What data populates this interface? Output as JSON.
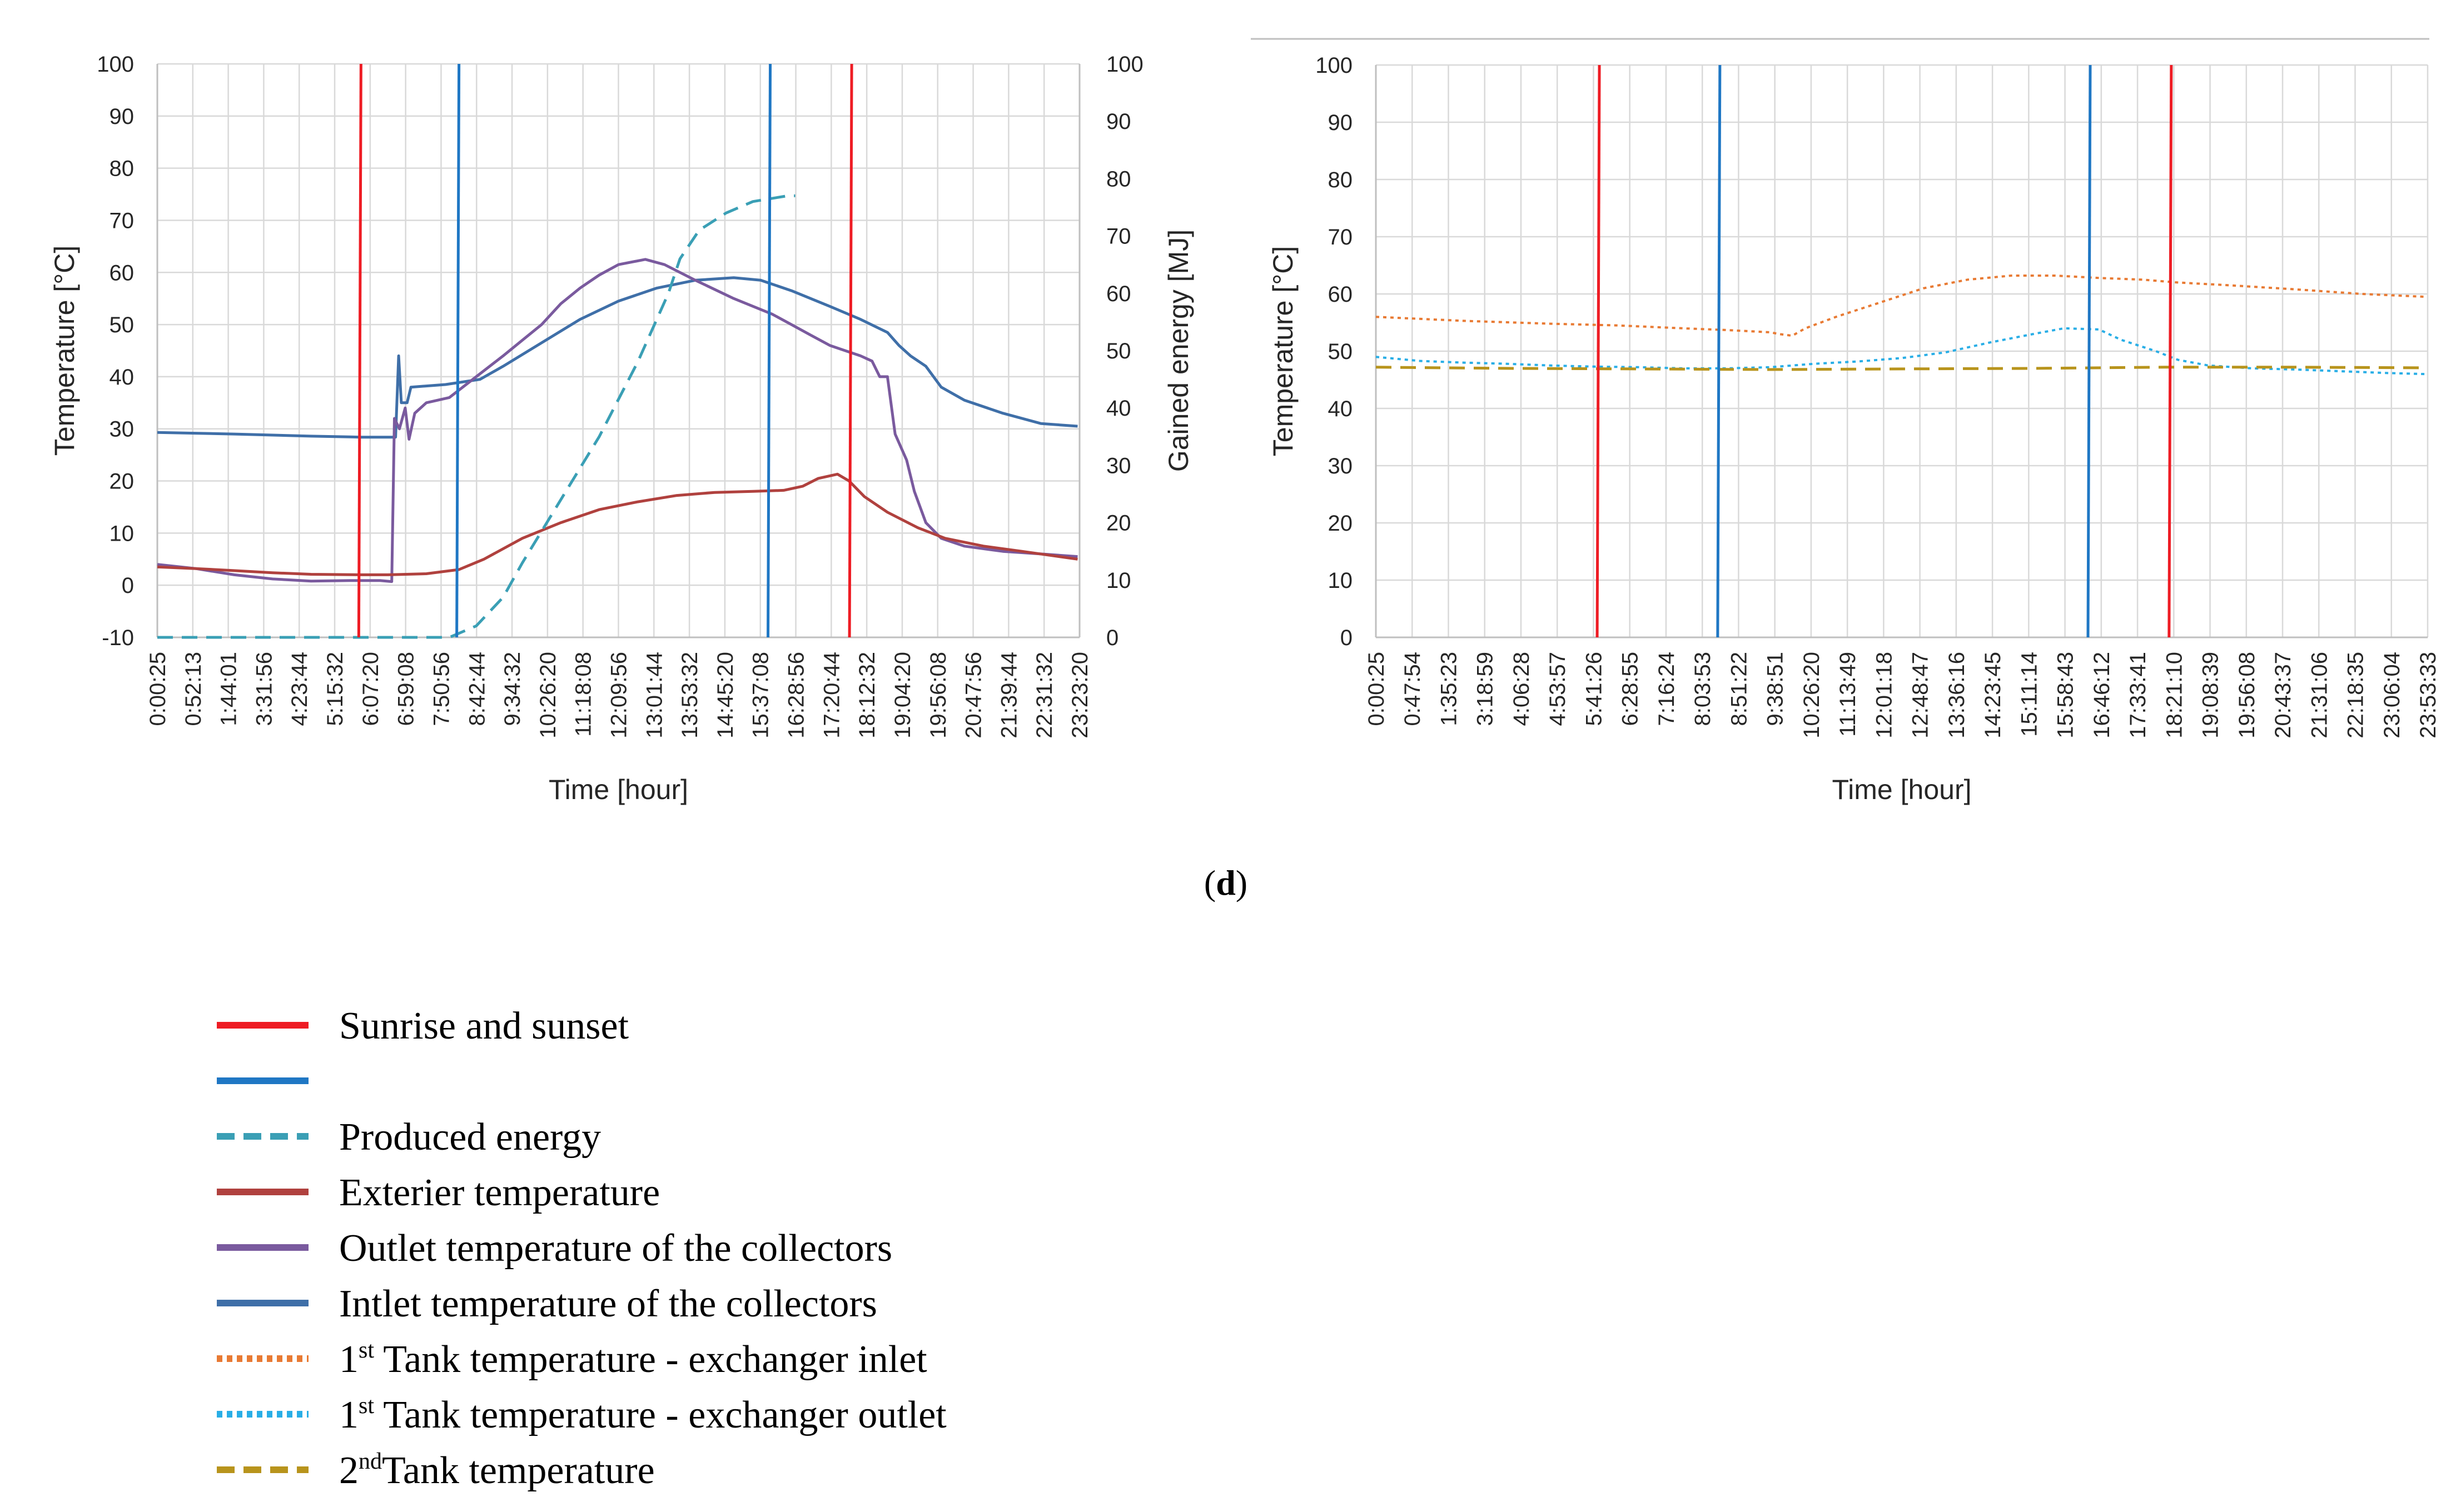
{
  "panel_label": {
    "open": "(",
    "letter": "d",
    "close": ")"
  },
  "colors": {
    "sun": "#ee1c24",
    "light": "#1f77c4",
    "produced": "#3a9fb5",
    "exterior": "#b0413e",
    "outlet": "#7a5a9e",
    "inlet": "#3f6fa8",
    "tank1_inlet": "#e87a33",
    "tank1_outlet": "#29aee6",
    "tank2": "#b8941c",
    "grid": "#d9d9d9",
    "axis": "#bfbfbf",
    "top_rule": "#bfbfbf"
  },
  "chart_data": [
    {
      "type": "line",
      "id": "left",
      "xlabel": "Time [hour]",
      "ylabel": "Temperature [°C]",
      "y2label": "Gained energy [MJ]",
      "ylim": [
        -10,
        100
      ],
      "y2lim": [
        0,
        100
      ],
      "y_ticks": [
        "-10",
        "0",
        "10",
        "20",
        "30",
        "40",
        "50",
        "60",
        "70",
        "80",
        "90",
        "100"
      ],
      "y2_ticks": [
        "0",
        "10",
        "20",
        "30",
        "40",
        "50",
        "60",
        "70",
        "80",
        "90",
        "100"
      ],
      "x_tick_labels": [
        "0:00:25",
        "0:52:13",
        "1:44:01",
        "3:31:56",
        "4:23:44",
        "5:15:32",
        "6:07:20",
        "6:59:08",
        "7:50:56",
        "8:42:44",
        "9:34:32",
        "10:26:20",
        "11:18:08",
        "12:09:56",
        "13:01:44",
        "13:53:32",
        "14:45:20",
        "15:37:08",
        "16:28:56",
        "17:20:44",
        "18:12:32",
        "19:04:20",
        "19:56:08",
        "20:47:56",
        "21:39:44",
        "22:31:32",
        "23:23:20"
      ],
      "vertical_markers": [
        {
          "name": "sunrise",
          "series": "sun",
          "x": 5.3
        },
        {
          "name": "light-start",
          "series": "light",
          "x": 7.85
        },
        {
          "name": "light-end",
          "series": "light",
          "x": 15.95
        },
        {
          "name": "sunset",
          "series": "sun",
          "x": 18.07
        }
      ],
      "series": [
        {
          "name": "Intlet temperature of the collectors",
          "key": "inlet",
          "axis": "left",
          "dash": "solid",
          "points": [
            [
              0,
              29.3
            ],
            [
              2,
              29
            ],
            [
              4,
              28.6
            ],
            [
              5.3,
              28.4
            ],
            [
              6.0,
              28.4
            ],
            [
              6.2,
              28.4
            ],
            [
              6.28,
              44
            ],
            [
              6.35,
              35
            ],
            [
              6.5,
              35
            ],
            [
              6.6,
              38
            ],
            [
              7.5,
              38.5
            ],
            [
              8.4,
              39.5
            ],
            [
              9,
              42
            ],
            [
              10,
              46.5
            ],
            [
              11,
              51
            ],
            [
              12,
              54.5
            ],
            [
              13,
              57
            ],
            [
              14,
              58.5
            ],
            [
              15,
              59
            ],
            [
              15.7,
              58.5
            ],
            [
              16.5,
              56.5
            ],
            [
              17.5,
              53.5
            ],
            [
              18.3,
              51
            ],
            [
              19,
              48.5
            ],
            [
              19.3,
              46
            ],
            [
              19.6,
              44
            ],
            [
              20,
              42
            ],
            [
              20.4,
              38
            ],
            [
              21,
              35.5
            ],
            [
              22,
              33
            ],
            [
              23,
              31
            ],
            [
              23.95,
              30.5
            ]
          ]
        },
        {
          "name": "Outlet temperature of the collectors",
          "key": "outlet",
          "axis": "left",
          "dash": "solid",
          "points": [
            [
              0,
              4
            ],
            [
              1,
              3.2
            ],
            [
              2,
              2
            ],
            [
              3,
              1.2
            ],
            [
              4,
              0.8
            ],
            [
              5,
              0.9
            ],
            [
              5.8,
              0.9
            ],
            [
              6.1,
              0.7
            ],
            [
              6.17,
              32
            ],
            [
              6.3,
              30
            ],
            [
              6.45,
              34
            ],
            [
              6.55,
              28
            ],
            [
              6.7,
              33
            ],
            [
              7,
              35
            ],
            [
              7.6,
              36
            ],
            [
              8.3,
              40
            ],
            [
              9,
              44
            ],
            [
              9.5,
              47
            ],
            [
              10,
              50
            ],
            [
              10.5,
              54
            ],
            [
              11,
              57
            ],
            [
              11.5,
              59.5
            ],
            [
              12,
              61.5
            ],
            [
              12.7,
              62.5
            ],
            [
              13.2,
              61.5
            ],
            [
              14,
              58.5
            ],
            [
              15,
              55
            ],
            [
              16,
              52
            ],
            [
              16.5,
              50
            ],
            [
              17,
              48
            ],
            [
              17.5,
              46
            ],
            [
              18.3,
              44
            ],
            [
              18.6,
              43
            ],
            [
              18.8,
              40
            ],
            [
              19.0,
              40
            ],
            [
              19.2,
              29
            ],
            [
              19.5,
              24
            ],
            [
              19.7,
              18
            ],
            [
              20,
              12
            ],
            [
              20.4,
              9
            ],
            [
              21,
              7.5
            ],
            [
              22,
              6.5
            ],
            [
              23,
              6
            ],
            [
              23.95,
              5.5
            ]
          ]
        },
        {
          "name": "Exterier temperature",
          "key": "exterior",
          "axis": "left",
          "dash": "solid",
          "points": [
            [
              0,
              3.5
            ],
            [
              1,
              3.2
            ],
            [
              2,
              2.8
            ],
            [
              3,
              2.4
            ],
            [
              4,
              2.1
            ],
            [
              5.3,
              2.0
            ],
            [
              6,
              2.0
            ],
            [
              7,
              2.2
            ],
            [
              7.85,
              3
            ],
            [
              8.5,
              5
            ],
            [
              9.5,
              9
            ],
            [
              10.5,
              12
            ],
            [
              11.5,
              14.5
            ],
            [
              12.5,
              16
            ],
            [
              13.5,
              17.2
            ],
            [
              14.5,
              17.8
            ],
            [
              15.5,
              18
            ],
            [
              16.3,
              18.2
            ],
            [
              16.8,
              19
            ],
            [
              17.2,
              20.5
            ],
            [
              17.7,
              21.3
            ],
            [
              18.0,
              20
            ],
            [
              18.4,
              17
            ],
            [
              19,
              14
            ],
            [
              19.8,
              11
            ],
            [
              20.5,
              9
            ],
            [
              21.5,
              7.5
            ],
            [
              22.5,
              6.5
            ],
            [
              23.95,
              5
            ]
          ]
        },
        {
          "name": "Produced energy",
          "key": "produced",
          "axis": "right",
          "dash": "dashed",
          "points": [
            [
              0,
              0
            ],
            [
              7.6,
              0
            ],
            [
              8.3,
              2
            ],
            [
              9,
              7
            ],
            [
              9.5,
              13
            ],
            [
              10.5,
              24
            ],
            [
              11.5,
              35
            ],
            [
              12.5,
              48
            ],
            [
              13.3,
              60
            ],
            [
              13.6,
              66
            ],
            [
              14.1,
              71
            ],
            [
              14.8,
              74
            ],
            [
              15.5,
              76
            ],
            [
              16.4,
              77
            ],
            [
              16.6,
              77
            ]
          ]
        }
      ]
    },
    {
      "type": "line",
      "id": "right",
      "xlabel": "Time [hour]",
      "ylabel": "Temperature [°C]",
      "ylim": [
        0,
        100
      ],
      "y_ticks": [
        "0",
        "10",
        "20",
        "30",
        "40",
        "50",
        "60",
        "70",
        "80",
        "90",
        "100"
      ],
      "x_tick_labels": [
        "0:00:25",
        "0:47:54",
        "1:35:23",
        "3:18:59",
        "4:06:28",
        "4:53:57",
        "5:41:26",
        "6:28:55",
        "7:16:24",
        "8:03:53",
        "8:51:22",
        "9:38:51",
        "10:26:20",
        "11:13:49",
        "12:01:18",
        "12:48:47",
        "13:36:16",
        "14:23:45",
        "15:11:14",
        "15:58:43",
        "16:46:12",
        "17:33:41",
        "18:21:10",
        "19:08:39",
        "19:56:08",
        "20:43:37",
        "21:31:06",
        "22:18:35",
        "23:06:04",
        "23:53:33"
      ],
      "vertical_markers": [
        {
          "name": "sunrise",
          "series": "sun",
          "x": 5.1
        },
        {
          "name": "light-start",
          "series": "light",
          "x": 7.85
        },
        {
          "name": "light-end",
          "series": "light",
          "x": 16.3
        },
        {
          "name": "sunset",
          "series": "sun",
          "x": 18.15
        }
      ],
      "series": [
        {
          "name": "1st Tank temperature - exchanger inlet",
          "key": "tank1_inlet",
          "axis": "left",
          "dash": "dotted",
          "points": [
            [
              0,
              56
            ],
            [
              2,
              55.3
            ],
            [
              4,
              54.8
            ],
            [
              5.5,
              54.5
            ],
            [
              7,
              54
            ],
            [
              8,
              53.7
            ],
            [
              9,
              53.3
            ],
            [
              9.2,
              53
            ],
            [
              9.5,
              52.7
            ],
            [
              9.8,
              54
            ],
            [
              10.5,
              56
            ],
            [
              11.5,
              58.5
            ],
            [
              12.5,
              61
            ],
            [
              13.5,
              62.5
            ],
            [
              14.5,
              63.2
            ],
            [
              15.5,
              63.2
            ],
            [
              16.5,
              62.8
            ],
            [
              17.5,
              62.5
            ],
            [
              18.3,
              62
            ],
            [
              19.5,
              61.5
            ],
            [
              21,
              60.8
            ],
            [
              22.5,
              60
            ],
            [
              23.95,
              59.5
            ]
          ]
        },
        {
          "name": "1st Tank temperature - exchanger outlet",
          "key": "tank1_outlet",
          "axis": "left",
          "dash": "dotted",
          "points": [
            [
              0,
              49
            ],
            [
              1,
              48.3
            ],
            [
              2,
              48
            ],
            [
              3,
              47.8
            ],
            [
              4,
              47.5
            ],
            [
              5,
              47.3
            ],
            [
              6,
              47.2
            ],
            [
              7,
              47
            ],
            [
              8,
              47
            ],
            [
              9,
              47.2
            ],
            [
              10,
              47.8
            ],
            [
              11,
              48.2
            ],
            [
              12,
              48.8
            ],
            [
              13,
              49.8
            ],
            [
              14,
              51.5
            ],
            [
              15,
              53
            ],
            [
              15.7,
              54
            ],
            [
              16.5,
              53.8
            ],
            [
              17,
              52
            ],
            [
              17.8,
              50
            ],
            [
              18.3,
              48.5
            ],
            [
              19,
              47.5
            ],
            [
              20,
              47
            ],
            [
              21,
              46.8
            ],
            [
              22,
              46.5
            ],
            [
              23,
              46.2
            ],
            [
              23.95,
              46
            ]
          ]
        },
        {
          "name": "2ndTank temperature",
          "key": "tank2",
          "axis": "left",
          "dash": "dashed",
          "points": [
            [
              0,
              47.2
            ],
            [
              3,
              47
            ],
            [
              6,
              46.9
            ],
            [
              9,
              46.8
            ],
            [
              12,
              46.9
            ],
            [
              15,
              47
            ],
            [
              18,
              47.2
            ],
            [
              21,
              47.2
            ],
            [
              23.95,
              47.1
            ]
          ]
        }
      ]
    }
  ],
  "legend": [
    {
      "key": "sun",
      "label": "Sunrise and sunset",
      "style": "solid"
    },
    {
      "key": "light",
      "label": "",
      "style": "solid"
    },
    {
      "key": "produced",
      "label": "Produced energy",
      "style": "dashed"
    },
    {
      "key": "exterior",
      "label": "Exterier temperature",
      "style": "solid"
    },
    {
      "key": "outlet",
      "label": "Outlet temperature of the collectors",
      "style": "solid"
    },
    {
      "key": "inlet",
      "label": "Intlet temperature of the collectors",
      "style": "solid"
    },
    {
      "key": "tank1_inlet",
      "label_prefix": "1",
      "label_sup": "st",
      "label": " Tank temperature - exchanger inlet",
      "style": "dotted"
    },
    {
      "key": "tank1_outlet",
      "label_prefix": "1",
      "label_sup": "st",
      "label": " Tank temperature - exchanger outlet",
      "style": "dotted"
    },
    {
      "key": "tank2",
      "label_prefix": "2",
      "label_sup": "nd",
      "label": "Tank temperature",
      "style": "dashed"
    }
  ]
}
